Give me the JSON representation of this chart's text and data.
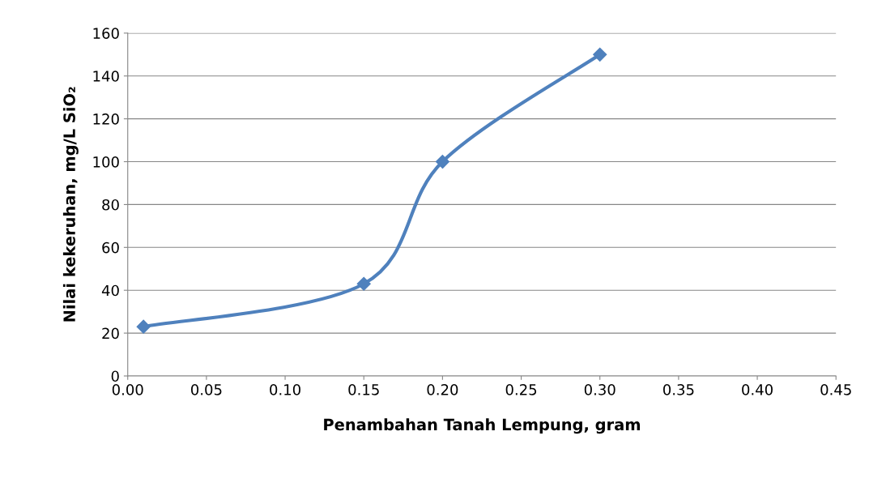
{
  "chart_data": {
    "type": "line",
    "xlabel": "Penambahan Tanah Lempung, gram",
    "ylabel": "Nilai kekeruhan, mg/L SiO₂",
    "x": [
      0.01,
      0.15,
      0.2,
      0.3
    ],
    "series": [
      {
        "color": "#4f81bd",
        "values": [
          23,
          43,
          100,
          150
        ]
      }
    ],
    "xlim": [
      0,
      0.45
    ],
    "xticks": [
      {
        "value": 0,
        "label": "0.00"
      },
      {
        "value": 0.05,
        "label": "0.05"
      },
      {
        "value": 0.1,
        "label": "0.10"
      },
      {
        "value": 0.15,
        "label": "0.15"
      },
      {
        "value": 0.2,
        "label": "0.20"
      },
      {
        "value": 0.25,
        "label": "0.25"
      },
      {
        "value": 0.3,
        "label": "0.30"
      },
      {
        "value": 0.35,
        "label": "0.35"
      },
      {
        "value": 0.4,
        "label": "0.40"
      },
      {
        "value": 0.45,
        "label": "0.45"
      }
    ],
    "ylim": [
      0,
      160
    ],
    "yticks": [
      0,
      20,
      40,
      60,
      80,
      100,
      120,
      140,
      160
    ],
    "grid": "y",
    "marker": "diamond",
    "line_style": "solid"
  }
}
